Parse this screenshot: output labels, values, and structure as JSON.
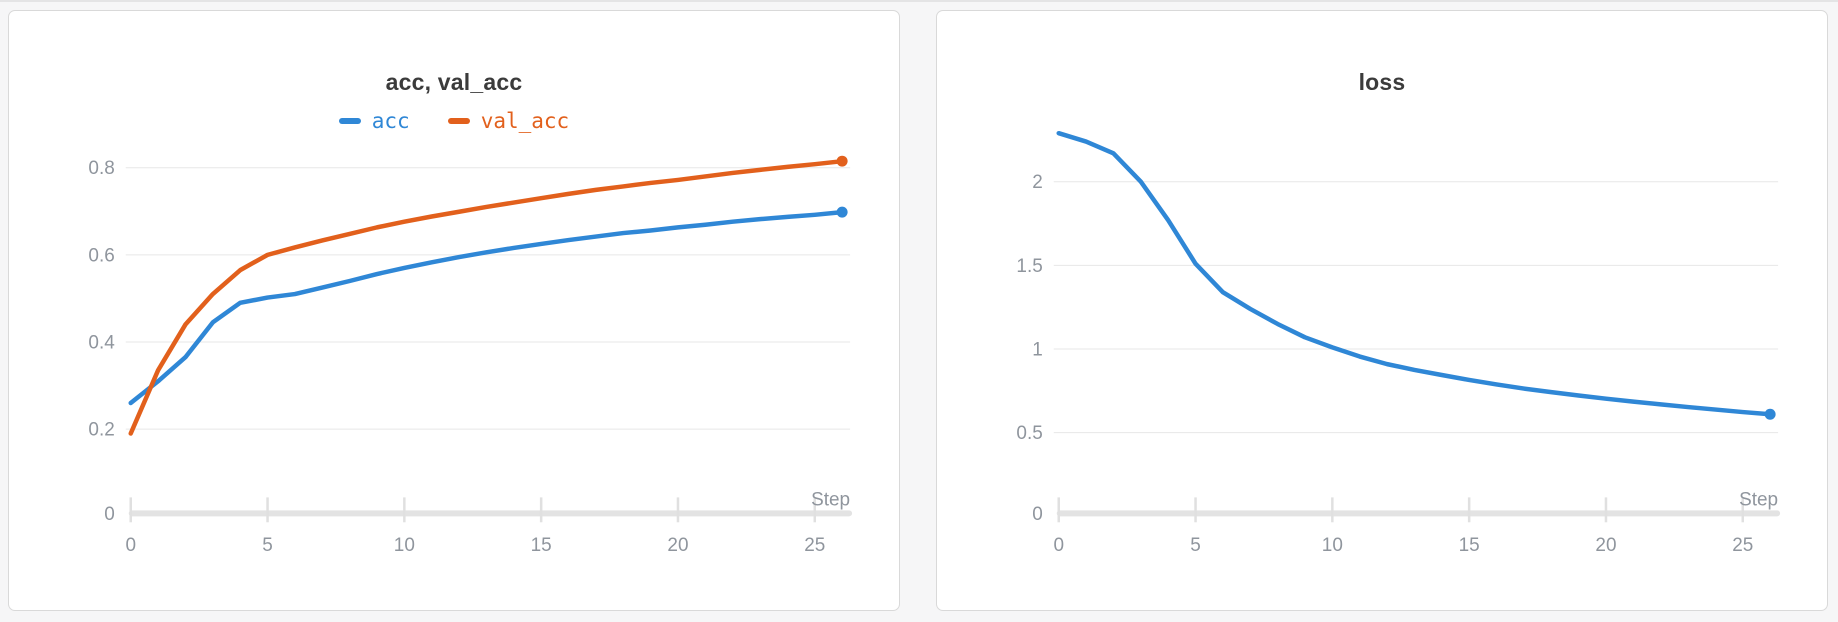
{
  "page": {
    "background": "#f6f6f7"
  },
  "styles": {
    "page_background": "#f6f6f7",
    "top_divider_color": "#e4e4e5",
    "card_background": "#ffffff",
    "card_border": "#d9d9d9",
    "title_color": "#3b3b3b",
    "grid_color": "#e7e7e7",
    "axis_bar_color": "#e3e3e3",
    "tick_color": "#e0e0e0",
    "label_color": "#8f959d",
    "accent_blue": "#2f87d6",
    "accent_orange": "#e2601c"
  },
  "chart_data": [
    {
      "type": "line",
      "title": "acc, val_acc",
      "xlabel": "Step",
      "legend": true,
      "legend_position": "top-center",
      "grid": true,
      "x": [
        0,
        1,
        2,
        3,
        4,
        5,
        6,
        7,
        8,
        9,
        10,
        11,
        12,
        13,
        14,
        15,
        16,
        17,
        18,
        19,
        20,
        21,
        22,
        23,
        24,
        25,
        26
      ],
      "xlim": [
        0,
        26
      ],
      "ylim": [
        0,
        0.86
      ],
      "xticks": [
        0,
        5,
        10,
        15,
        20,
        25
      ],
      "yticks": [
        0,
        0.2,
        0.4,
        0.6,
        0.8
      ],
      "series": [
        {
          "name": "acc",
          "color": "#2f87d6",
          "endpoint_dot": true,
          "values": [
            0.26,
            0.31,
            0.365,
            0.445,
            0.49,
            0.502,
            0.51,
            0.525,
            0.54,
            0.556,
            0.57,
            0.583,
            0.595,
            0.606,
            0.616,
            0.625,
            0.634,
            0.642,
            0.65,
            0.656,
            0.663,
            0.669,
            0.676,
            0.682,
            0.687,
            0.692,
            0.698
          ]
        },
        {
          "name": "val_acc",
          "color": "#e2601c",
          "endpoint_dot": true,
          "values": [
            0.19,
            0.335,
            0.44,
            0.51,
            0.565,
            0.6,
            0.617,
            0.633,
            0.648,
            0.663,
            0.676,
            0.688,
            0.699,
            0.71,
            0.72,
            0.73,
            0.74,
            0.749,
            0.757,
            0.765,
            0.772,
            0.78,
            0.788,
            0.795,
            0.802,
            0.808,
            0.815
          ]
        }
      ]
    },
    {
      "type": "line",
      "title": "loss",
      "xlabel": "Step",
      "legend": false,
      "legend_position": "none",
      "grid": true,
      "x": [
        0,
        1,
        2,
        3,
        4,
        5,
        6,
        7,
        8,
        9,
        10,
        11,
        12,
        13,
        14,
        15,
        16,
        17,
        18,
        19,
        20,
        21,
        22,
        23,
        24,
        25,
        26
      ],
      "xlim": [
        0,
        26
      ],
      "ylim": [
        0,
        2.24
      ],
      "xticks": [
        0,
        5,
        10,
        15,
        20,
        25
      ],
      "yticks": [
        0,
        0.5,
        1,
        1.5,
        2
      ],
      "series": [
        {
          "name": "loss",
          "color": "#2f87d6",
          "endpoint_dot": true,
          "values": [
            2.29,
            2.24,
            2.17,
            2.0,
            1.77,
            1.51,
            1.34,
            1.24,
            1.15,
            1.07,
            1.01,
            0.955,
            0.91,
            0.875,
            0.845,
            0.815,
            0.788,
            0.764,
            0.742,
            0.722,
            0.703,
            0.686,
            0.669,
            0.653,
            0.638,
            0.623,
            0.61
          ]
        }
      ]
    }
  ]
}
